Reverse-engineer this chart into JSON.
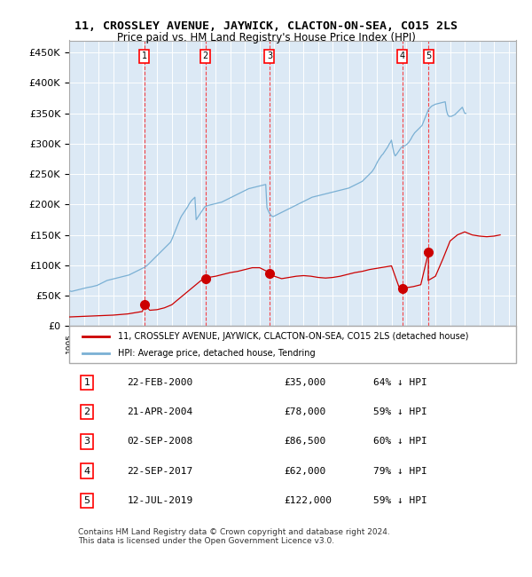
{
  "title": "11, CROSSLEY AVENUE, JAYWICK, CLACTON-ON-SEA, CO15 2LS",
  "subtitle": "Price paid vs. HM Land Registry's House Price Index (HPI)",
  "xlabel": "",
  "ylabel": "",
  "ylim": [
    0,
    470000
  ],
  "xlim_start": 1995.0,
  "xlim_end": 2025.5,
  "background_color": "#dce9f5",
  "plot_bg_color": "#dce9f5",
  "grid_color": "#ffffff",
  "legend_label_red": "11, CROSSLEY AVENUE, JAYWICK, CLACTON-ON-SEA, CO15 2LS (detached house)",
  "legend_label_blue": "HPI: Average price, detached house, Tendring",
  "footer": "Contains HM Land Registry data © Crown copyright and database right 2024.\nThis data is licensed under the Open Government Licence v3.0.",
  "sale_dates": [
    2000.14,
    2004.31,
    2008.67,
    2017.73,
    2019.53
  ],
  "sale_prices": [
    35000,
    78000,
    86500,
    62000,
    122000
  ],
  "sale_labels": [
    "1",
    "2",
    "3",
    "4",
    "5"
  ],
  "sale_dates_display": [
    "22-FEB-2000",
    "21-APR-2004",
    "02-SEP-2008",
    "22-SEP-2017",
    "12-JUL-2019"
  ],
  "sale_pct": [
    "64%",
    "59%",
    "60%",
    "79%",
    "59%"
  ],
  "hpi_years": [
    1995.0,
    1995.083,
    1995.167,
    1995.25,
    1995.333,
    1995.417,
    1995.5,
    1995.583,
    1995.667,
    1995.75,
    1995.833,
    1995.917,
    1996.0,
    1996.083,
    1996.167,
    1996.25,
    1996.333,
    1996.417,
    1996.5,
    1996.583,
    1996.667,
    1996.75,
    1996.833,
    1996.917,
    1997.0,
    1997.083,
    1997.167,
    1997.25,
    1997.333,
    1997.417,
    1997.5,
    1997.583,
    1997.667,
    1997.75,
    1997.833,
    1997.917,
    1998.0,
    1998.083,
    1998.167,
    1998.25,
    1998.333,
    1998.417,
    1998.5,
    1998.583,
    1998.667,
    1998.75,
    1998.833,
    1998.917,
    1999.0,
    1999.083,
    1999.167,
    1999.25,
    1999.333,
    1999.417,
    1999.5,
    1999.583,
    1999.667,
    1999.75,
    1999.833,
    1999.917,
    2000.0,
    2000.083,
    2000.167,
    2000.25,
    2000.333,
    2000.417,
    2000.5,
    2000.583,
    2000.667,
    2000.75,
    2000.833,
    2000.917,
    2001.0,
    2001.083,
    2001.167,
    2001.25,
    2001.333,
    2001.417,
    2001.5,
    2001.583,
    2001.667,
    2001.75,
    2001.833,
    2001.917,
    2002.0,
    2002.083,
    2002.167,
    2002.25,
    2002.333,
    2002.417,
    2002.5,
    2002.583,
    2002.667,
    2002.75,
    2002.833,
    2002.917,
    2003.0,
    2003.083,
    2003.167,
    2003.25,
    2003.333,
    2003.417,
    2003.5,
    2003.583,
    2003.667,
    2003.75,
    2003.833,
    2003.917,
    2004.0,
    2004.083,
    2004.167,
    2004.25,
    2004.333,
    2004.417,
    2004.5,
    2004.583,
    2004.667,
    2004.75,
    2004.833,
    2004.917,
    2005.0,
    2005.083,
    2005.167,
    2005.25,
    2005.333,
    2005.417,
    2005.5,
    2005.583,
    2005.667,
    2005.75,
    2005.833,
    2005.917,
    2006.0,
    2006.083,
    2006.167,
    2006.25,
    2006.333,
    2006.417,
    2006.5,
    2006.583,
    2006.667,
    2006.75,
    2006.833,
    2006.917,
    2007.0,
    2007.083,
    2007.167,
    2007.25,
    2007.333,
    2007.417,
    2007.5,
    2007.583,
    2007.667,
    2007.75,
    2007.833,
    2007.917,
    2008.0,
    2008.083,
    2008.167,
    2008.25,
    2008.333,
    2008.417,
    2008.5,
    2008.583,
    2008.667,
    2008.75,
    2008.833,
    2008.917,
    2009.0,
    2009.083,
    2009.167,
    2009.25,
    2009.333,
    2009.417,
    2009.5,
    2009.583,
    2009.667,
    2009.75,
    2009.833,
    2009.917,
    2010.0,
    2010.083,
    2010.167,
    2010.25,
    2010.333,
    2010.417,
    2010.5,
    2010.583,
    2010.667,
    2010.75,
    2010.833,
    2010.917,
    2011.0,
    2011.083,
    2011.167,
    2011.25,
    2011.333,
    2011.417,
    2011.5,
    2011.583,
    2011.667,
    2011.75,
    2011.833,
    2011.917,
    2012.0,
    2012.083,
    2012.167,
    2012.25,
    2012.333,
    2012.417,
    2012.5,
    2012.583,
    2012.667,
    2012.75,
    2012.833,
    2012.917,
    2013.0,
    2013.083,
    2013.167,
    2013.25,
    2013.333,
    2013.417,
    2013.5,
    2013.583,
    2013.667,
    2013.75,
    2013.833,
    2013.917,
    2014.0,
    2014.083,
    2014.167,
    2014.25,
    2014.333,
    2014.417,
    2014.5,
    2014.583,
    2014.667,
    2014.75,
    2014.833,
    2014.917,
    2015.0,
    2015.083,
    2015.167,
    2015.25,
    2015.333,
    2015.417,
    2015.5,
    2015.583,
    2015.667,
    2015.75,
    2015.833,
    2015.917,
    2016.0,
    2016.083,
    2016.167,
    2016.25,
    2016.333,
    2016.417,
    2016.5,
    2016.583,
    2016.667,
    2016.75,
    2016.833,
    2016.917,
    2017.0,
    2017.083,
    2017.167,
    2017.25,
    2017.333,
    2017.417,
    2017.5,
    2017.583,
    2017.667,
    2017.75,
    2017.833,
    2017.917,
    2018.0,
    2018.083,
    2018.167,
    2018.25,
    2018.333,
    2018.417,
    2018.5,
    2018.583,
    2018.667,
    2018.75,
    2018.833,
    2018.917,
    2019.0,
    2019.083,
    2019.167,
    2019.25,
    2019.333,
    2019.417,
    2019.5,
    2019.583,
    2019.667,
    2019.75,
    2019.833,
    2019.917,
    2020.0,
    2020.083,
    2020.167,
    2020.25,
    2020.333,
    2020.417,
    2020.5,
    2020.583,
    2020.667,
    2020.75,
    2020.833,
    2020.917,
    2021.0,
    2021.083,
    2021.167,
    2021.25,
    2021.333,
    2021.417,
    2021.5,
    2021.583,
    2021.667,
    2021.75,
    2021.833,
    2021.917,
    2022.0,
    2022.083,
    2022.167,
    2022.25,
    2022.333,
    2022.417,
    2022.5,
    2022.583,
    2022.667,
    2022.75,
    2022.833,
    2022.917,
    2023.0,
    2023.083,
    2023.167,
    2023.25,
    2023.333,
    2023.417,
    2023.5,
    2023.583,
    2023.667,
    2023.75,
    2023.833,
    2023.917,
    2024.0,
    2024.083,
    2024.167,
    2024.25,
    2024.333,
    2024.417
  ],
  "hpi_values": [
    58000,
    57500,
    57000,
    57500,
    58000,
    58500,
    59000,
    59500,
    60000,
    60500,
    61000,
    61500,
    62000,
    62500,
    63000,
    63500,
    63800,
    64000,
    64500,
    65000,
    65500,
    66000,
    66500,
    67000,
    68000,
    69000,
    70000,
    71000,
    72000,
    73000,
    74000,
    75000,
    75500,
    76000,
    76500,
    77000,
    77500,
    78000,
    78500,
    79000,
    79500,
    80000,
    80500,
    81000,
    81500,
    82000,
    82500,
    83000,
    83500,
    84000,
    85000,
    86000,
    87000,
    88000,
    89000,
    90000,
    91000,
    92000,
    93000,
    94000,
    95000,
    96000,
    97000,
    98500,
    100000,
    102000,
    104000,
    106000,
    108000,
    110000,
    112000,
    114000,
    116000,
    118000,
    120000,
    122000,
    124000,
    126000,
    128000,
    130000,
    132000,
    134000,
    136000,
    138000,
    142000,
    147000,
    152000,
    157000,
    162000,
    167000,
    172000,
    177000,
    181000,
    184000,
    187000,
    190000,
    193000,
    196000,
    200000,
    203000,
    206000,
    208000,
    210000,
    212000,
    175000,
    178000,
    181000,
    184000,
    187000,
    190000,
    193000,
    196000,
    197000,
    198000,
    198500,
    199000,
    199500,
    200000,
    200500,
    201000,
    201500,
    202000,
    202500,
    203000,
    203500,
    204000,
    205000,
    206000,
    207000,
    208000,
    209000,
    210000,
    211000,
    212000,
    213000,
    214000,
    215000,
    216000,
    217000,
    218000,
    219000,
    220000,
    221000,
    222000,
    223000,
    224000,
    225000,
    226000,
    226500,
    227000,
    227500,
    228000,
    228500,
    229000,
    229500,
    230000,
    230500,
    231000,
    231500,
    232000,
    232500,
    233000,
    195000,
    190000,
    186000,
    183000,
    181000,
    180000,
    181000,
    182000,
    183000,
    184000,
    185000,
    186000,
    187000,
    188000,
    189000,
    190000,
    191000,
    192000,
    193000,
    194000,
    195000,
    196000,
    197000,
    198000,
    199000,
    200000,
    201000,
    202000,
    203000,
    204000,
    205000,
    206000,
    207000,
    208000,
    209000,
    210000,
    211000,
    212000,
    212500,
    213000,
    213500,
    214000,
    214500,
    215000,
    215500,
    216000,
    216500,
    217000,
    217500,
    218000,
    218500,
    219000,
    219500,
    220000,
    220500,
    221000,
    221500,
    222000,
    222500,
    223000,
    223500,
    224000,
    224500,
    225000,
    225500,
    226000,
    226500,
    227000,
    228000,
    229000,
    230000,
    231000,
    232000,
    233000,
    234000,
    235000,
    236000,
    237000,
    238000,
    240000,
    242000,
    244000,
    246000,
    248000,
    250000,
    252000,
    254000,
    257000,
    260000,
    264000,
    268000,
    272000,
    275000,
    278000,
    281000,
    283000,
    286000,
    289000,
    292000,
    295000,
    299000,
    302000,
    306000,
    294000,
    285000,
    280000,
    282000,
    285000,
    288000,
    291000,
    294000,
    295000,
    296000,
    297000,
    298000,
    300000,
    302000,
    305000,
    308000,
    312000,
    315000,
    318000,
    320000,
    322000,
    324000,
    326000,
    328000,
    330000,
    335000,
    340000,
    345000,
    350000,
    355000,
    358000,
    360000,
    362000,
    363000,
    364000,
    365000,
    365500,
    366000,
    366500,
    367000,
    367500,
    368000,
    368500,
    369000,
    355000,
    348000,
    345000,
    345000,
    345000,
    346000,
    347000,
    348000,
    350000,
    352000,
    354000,
    356000,
    358000,
    360000,
    355000,
    350000,
    350000
  ],
  "red_line_years": [
    1995.0,
    1995.5,
    1996.0,
    1996.5,
    1997.0,
    1997.5,
    1998.0,
    1998.5,
    1999.0,
    1999.5,
    2000.0,
    2000.14,
    2000.5,
    2001.0,
    2001.5,
    2002.0,
    2002.5,
    2003.0,
    2003.5,
    2004.0,
    2004.31,
    2004.5,
    2005.0,
    2005.5,
    2006.0,
    2006.5,
    2007.0,
    2007.5,
    2008.0,
    2008.5,
    2008.67,
    2009.0,
    2009.5,
    2010.0,
    2010.5,
    2011.0,
    2011.5,
    2012.0,
    2012.5,
    2013.0,
    2013.5,
    2014.0,
    2014.5,
    2015.0,
    2015.5,
    2016.0,
    2016.5,
    2017.0,
    2017.5,
    2017.73,
    2018.0,
    2018.5,
    2019.0,
    2019.53,
    2019.5,
    2020.0,
    2020.5,
    2021.0,
    2021.5,
    2022.0,
    2022.5,
    2023.0,
    2023.5,
    2024.0,
    2024.417
  ],
  "red_line_values": [
    15000,
    15500,
    16000,
    16500,
    17000,
    17500,
    18000,
    19000,
    20000,
    22000,
    24000,
    35000,
    26000,
    27000,
    30000,
    35000,
    45000,
    55000,
    65000,
    75000,
    78000,
    80000,
    82000,
    85000,
    88000,
    90000,
    93000,
    96000,
    96000,
    90000,
    86500,
    82000,
    78000,
    80000,
    82000,
    83000,
    82000,
    80000,
    79000,
    80000,
    82000,
    85000,
    88000,
    90000,
    93000,
    95000,
    97000,
    99000,
    65000,
    62000,
    63000,
    65000,
    68000,
    122000,
    75000,
    82000,
    110000,
    140000,
    150000,
    155000,
    150000,
    148000,
    147000,
    148000,
    150000
  ]
}
